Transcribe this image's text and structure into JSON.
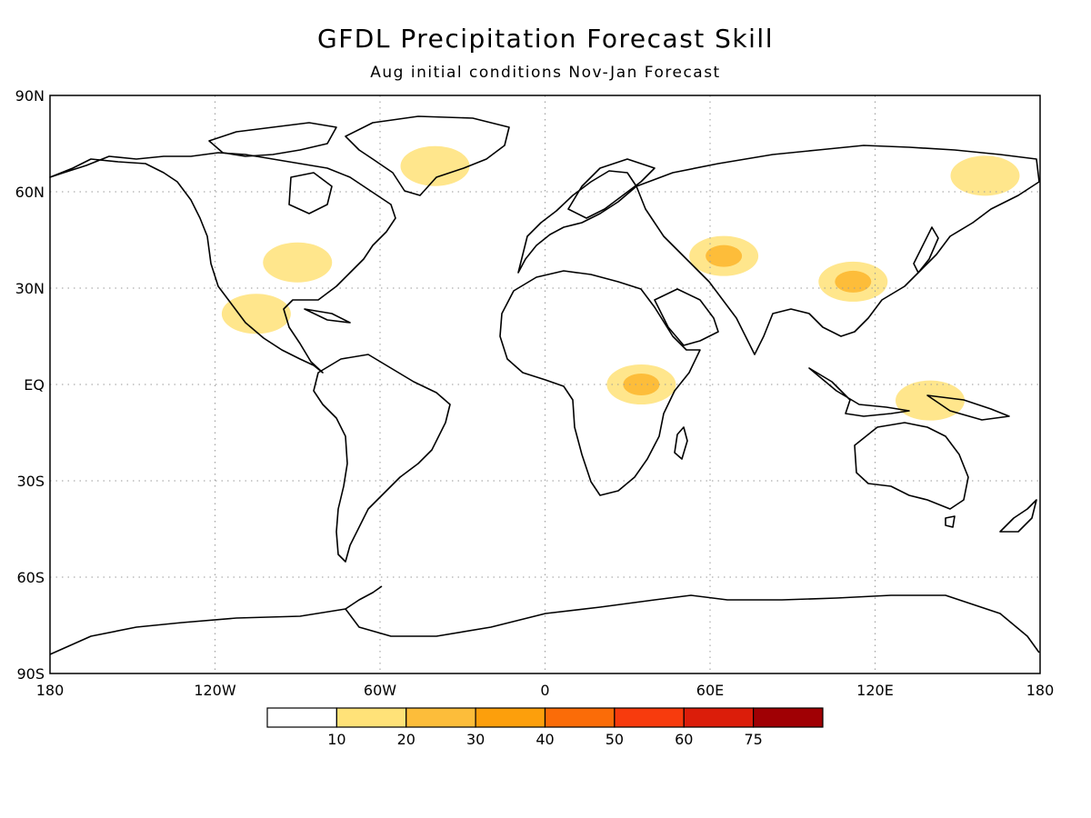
{
  "title": "GFDL Precipitation Forecast Skill",
  "subtitle": "Aug initial conditions   Nov-Jan Forecast",
  "lat_labels": [
    "90N",
    "60N",
    "30N",
    "EQ",
    "30S",
    "60S",
    "90S"
  ],
  "lon_labels": [
    "180",
    "120W",
    "60W",
    "0",
    "60E",
    "120E",
    "180"
  ],
  "colorbar": {
    "ticks": [
      "10",
      "20",
      "30",
      "40",
      "50",
      "60",
      "75"
    ],
    "colors": [
      "#ffffff",
      "#ffe278",
      "#fdbd3a",
      "#fd9f0c",
      "#fb6c08",
      "#f73b0d",
      "#db1d0a",
      "#a00004"
    ]
  },
  "map_colors": {
    "land_outline": "#000000",
    "grid": "#9a9a9a",
    "frame": "#000000"
  },
  "skill_regions": [
    {
      "name": "north-america-east",
      "lon": -90,
      "lat": 38,
      "level": 1
    },
    {
      "name": "mexico",
      "lon": -105,
      "lat": 22,
      "level": 1
    },
    {
      "name": "greenland",
      "lon": -40,
      "lat": 68,
      "level": 1
    },
    {
      "name": "central-asia",
      "lon": 65,
      "lat": 40,
      "level": 2
    },
    {
      "name": "east-africa",
      "lon": 35,
      "lat": 0,
      "level": 2
    },
    {
      "name": "china",
      "lon": 112,
      "lat": 32,
      "level": 2
    },
    {
      "name": "maritime-continent",
      "lon": 140,
      "lat": -5,
      "level": 1
    },
    {
      "name": "siberia-east",
      "lon": 160,
      "lat": 65,
      "level": 1
    }
  ]
}
